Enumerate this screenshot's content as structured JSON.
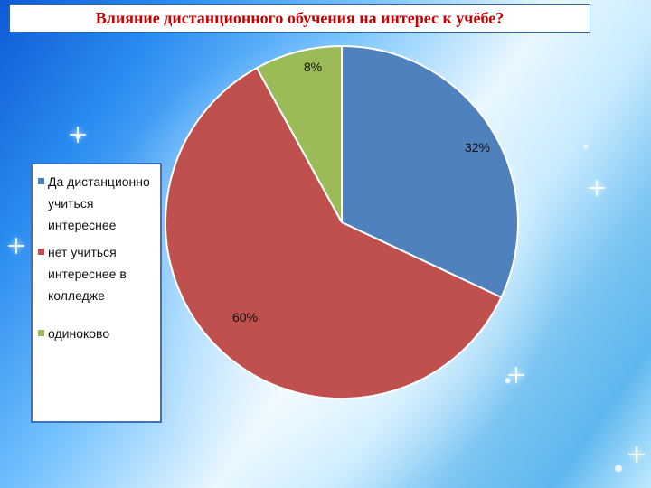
{
  "slide": {
    "title": "Влияние дистанционного обучения на интерес к учёбе?"
  },
  "chart_data": {
    "type": "pie",
    "title": "Влияние дистанционного обучения на интерес к учёбе?",
    "slices": [
      {
        "label": "Да дистанционно учиться интереснее",
        "value": 32,
        "display": "32%",
        "color": "#4f81bd"
      },
      {
        "label": "нет учиться интереснее в колледже",
        "value": 60,
        "display": "60%",
        "color": "#c0504d"
      },
      {
        "label": "одиноково",
        "value": 8,
        "display": "8%",
        "color": "#9bbb59"
      }
    ],
    "legend_position": "left",
    "units": "%"
  },
  "legend": {
    "items": [
      {
        "label": "Да дистанционно учиться интереснее",
        "color": "#4f81bd"
      },
      {
        "label": "нет учиться интереснее в колледже",
        "color": "#c0504d"
      },
      {
        "label": "одиноково",
        "color": "#9bbb59"
      }
    ]
  }
}
